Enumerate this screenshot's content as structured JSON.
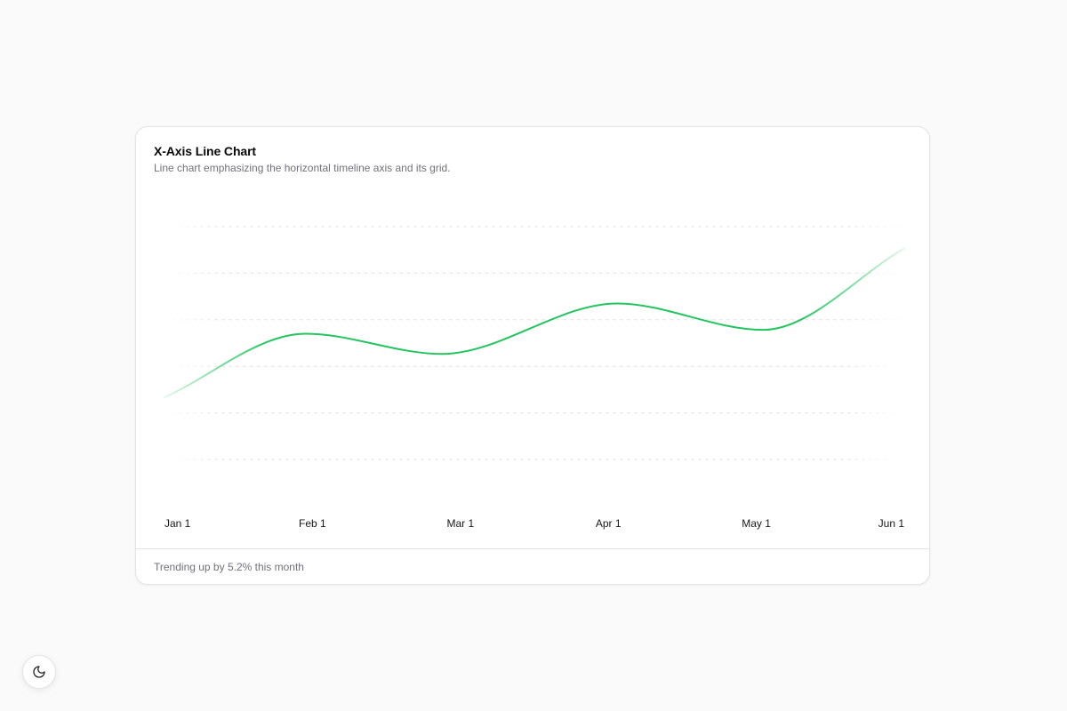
{
  "card": {
    "title": "X-Axis Line Chart",
    "subtitle": "Line chart emphasizing the horizontal timeline axis and its grid.",
    "footer": "Trending up by 5.2% this month"
  },
  "theme_toggle": {
    "icon": "moon-icon"
  },
  "colors": {
    "line": "#22c55e",
    "grid": "#e4e4e7"
  },
  "chart_data": {
    "type": "line",
    "curve": "smooth",
    "x_type": "date",
    "tick_labels": [
      "Jan 1",
      "Feb 1",
      "Mar 1",
      "Apr 1",
      "May 1",
      "Jun 1"
    ],
    "x_domain": [
      "2024-01-01",
      "2024-06-01"
    ],
    "y_range": [
      0,
      300
    ],
    "y_axis_visible": false,
    "grid": {
      "horizontal": true,
      "vertical": false,
      "style": "dashed"
    },
    "series": [
      {
        "points": [
          {
            "x": "2024-01-01",
            "y": 80
          },
          {
            "x": "2024-01-30",
            "y": 162
          },
          {
            "x": "2024-02-27",
            "y": 136
          },
          {
            "x": "2024-04-03",
            "y": 201
          },
          {
            "x": "2024-05-03",
            "y": 167
          },
          {
            "x": "2024-06-01",
            "y": 272
          }
        ]
      }
    ]
  }
}
